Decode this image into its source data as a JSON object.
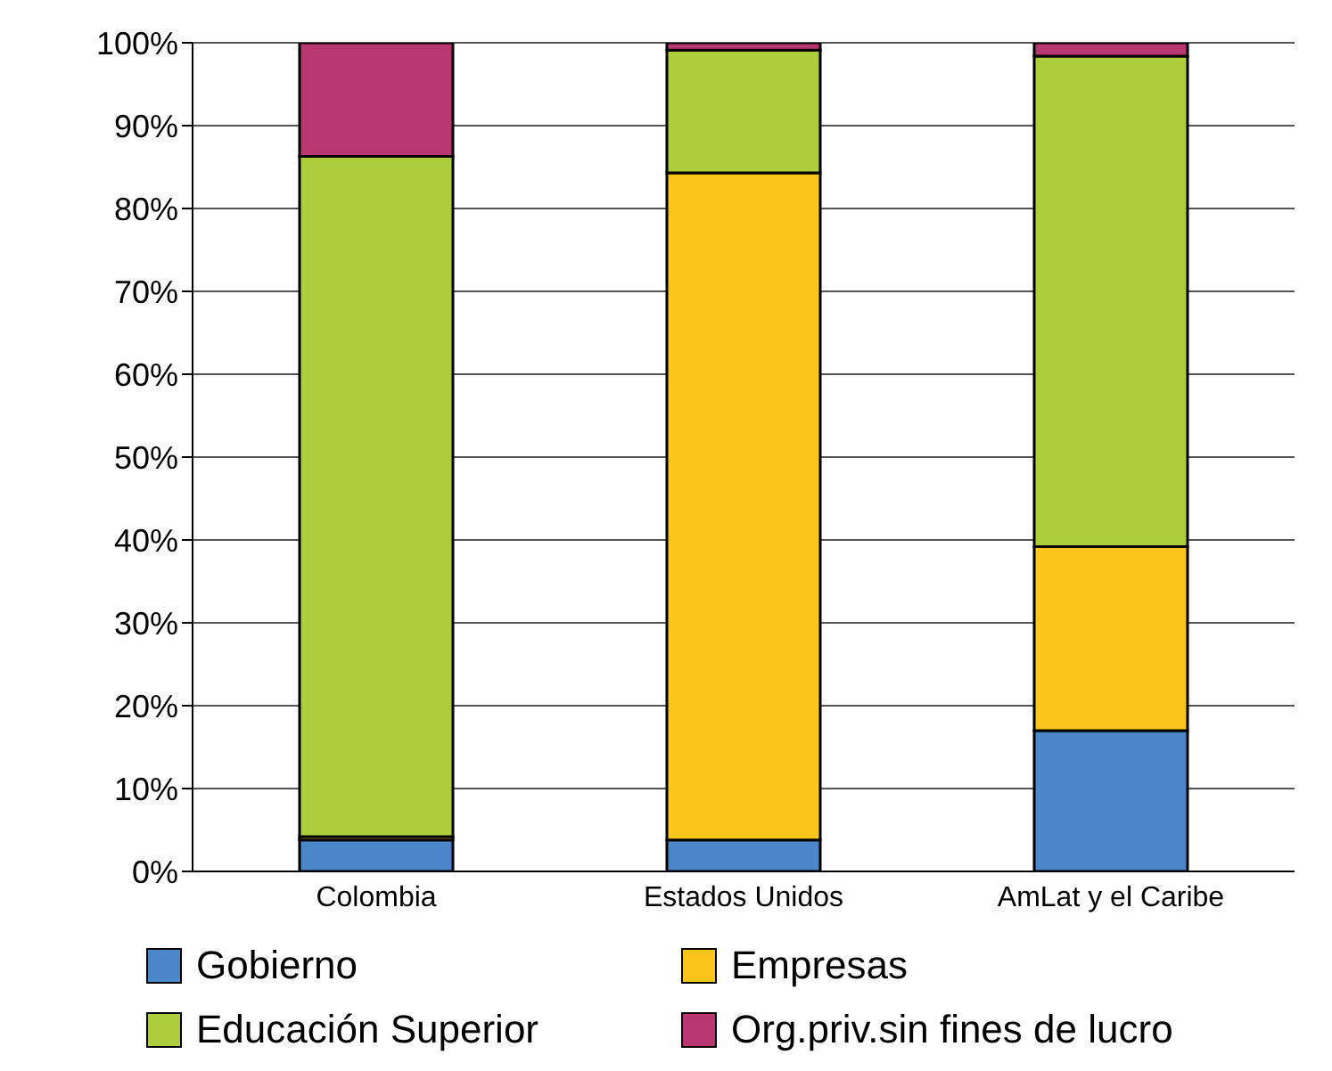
{
  "chart_data": {
    "type": "bar",
    "stacked": true,
    "categories": [
      "Colombia",
      "Estados Unidos",
      "AmLat y el Caribe"
    ],
    "series": [
      {
        "name": "Gobierno",
        "color": "#4a86c8",
        "values": [
          3.8,
          3.8,
          17.0
        ]
      },
      {
        "name": "Empresas",
        "color": "#fbc61c",
        "values": [
          0.4,
          80.5,
          22.2
        ]
      },
      {
        "name": "Educación Superior",
        "color": "#adcd3c",
        "values": [
          82.1,
          14.8,
          59.2
        ]
      },
      {
        "name": "Org.priv.sin fines de lucro",
        "color": "#b83770",
        "values": [
          13.7,
          0.9,
          1.6
        ]
      }
    ],
    "ylim": [
      0,
      100
    ],
    "yticks": [
      {
        "value": 0,
        "label": "0%"
      },
      {
        "value": 10,
        "label": "10%"
      },
      {
        "value": 20,
        "label": "20%"
      },
      {
        "value": 30,
        "label": "30%"
      },
      {
        "value": 40,
        "label": "40%"
      },
      {
        "value": 50,
        "label": "50%"
      },
      {
        "value": 60,
        "label": "60%"
      },
      {
        "value": 70,
        "label": "70%"
      },
      {
        "value": 80,
        "label": "80%"
      },
      {
        "value": 90,
        "label": "90%"
      },
      {
        "value": 100,
        "label": "100%"
      }
    ],
    "grid": "y",
    "legend": "bottom"
  }
}
